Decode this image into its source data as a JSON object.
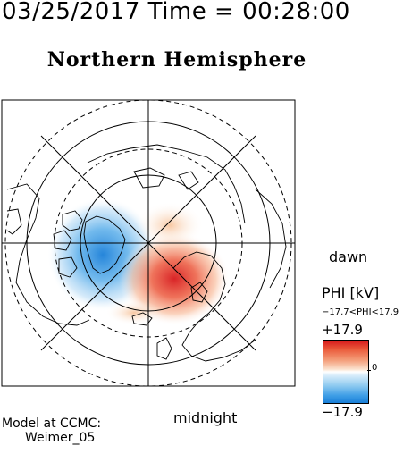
{
  "header": {
    "timestamp": "03/25/2017 Time = 00:28:00"
  },
  "map": {
    "title": "Northern Hemisphere",
    "dawn_label": "dawn",
    "midnight_label": "midnight"
  },
  "legend": {
    "title": "PHI [kV]",
    "range_text": "−17.7<PHI<17.9",
    "max_label": "+17.9",
    "zero_label": "0",
    "min_label": "−17.9"
  },
  "credit": {
    "line1": "Model at CCMC:",
    "line2": "Weimer_05"
  },
  "colors": {
    "positive": "#d7191c",
    "negative": "#1a7fd8",
    "neutral": "#ffffff"
  }
}
